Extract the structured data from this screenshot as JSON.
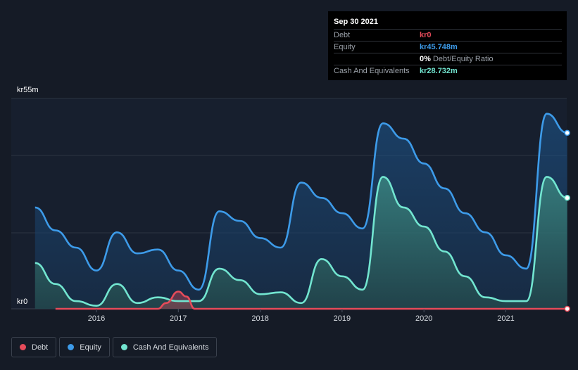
{
  "tooltip": {
    "date": "Sep 30 2021",
    "rows": [
      {
        "label": "Debt",
        "value": "kr0",
        "color": "#e64b5a"
      },
      {
        "label": "Equity",
        "value": "kr45.748m",
        "color": "#3d9be9"
      },
      {
        "label": "",
        "value": "0%",
        "suffix": "Debt/Equity Ratio",
        "color": "#ffffff"
      },
      {
        "label": "Cash And Equivalents",
        "value": "kr28.732m",
        "color": "#72e5d0"
      }
    ]
  },
  "legend": [
    {
      "label": "Debt",
      "color": "#e64b5a"
    },
    {
      "label": "Equity",
      "color": "#3d9be9"
    },
    {
      "label": "Cash And Equivalents",
      "color": "#72e5d0"
    }
  ],
  "chart_data": {
    "type": "area",
    "y_top_label": "kr55m",
    "y_bottom_label": "kr0",
    "ylim": [
      0,
      55
    ],
    "xlim": [
      2015.2,
      2021.75
    ],
    "x_ticks": [
      2016,
      2017,
      2018,
      2019,
      2020,
      2021
    ],
    "x_tick_labels": [
      "2016",
      "2017",
      "2018",
      "2019",
      "2020",
      "2021"
    ],
    "grid": true,
    "series": [
      {
        "name": "Equity",
        "color": "#3d9be9",
        "points": [
          [
            2015.25,
            26.5
          ],
          [
            2015.5,
            20.5
          ],
          [
            2015.75,
            16
          ],
          [
            2016,
            10
          ],
          [
            2016.25,
            20
          ],
          [
            2016.5,
            14.5
          ],
          [
            2016.75,
            15.5
          ],
          [
            2017,
            10
          ],
          [
            2017.25,
            5
          ],
          [
            2017.5,
            25.5
          ],
          [
            2017.75,
            23
          ],
          [
            2018,
            18.5
          ],
          [
            2018.25,
            16
          ],
          [
            2018.5,
            33
          ],
          [
            2018.75,
            29
          ],
          [
            2019,
            25
          ],
          [
            2019.25,
            21
          ],
          [
            2019.5,
            48.5
          ],
          [
            2019.75,
            44.5
          ],
          [
            2020,
            38
          ],
          [
            2020.25,
            31.5
          ],
          [
            2020.5,
            25
          ],
          [
            2020.75,
            20
          ],
          [
            2021,
            14
          ],
          [
            2021.25,
            10.5
          ],
          [
            2021.5,
            51
          ],
          [
            2021.75,
            46
          ]
        ]
      },
      {
        "name": "Cash And Equivalents",
        "color": "#72e5d0",
        "points": [
          [
            2015.25,
            12
          ],
          [
            2015.5,
            6.5
          ],
          [
            2015.75,
            2
          ],
          [
            2016,
            0.8
          ],
          [
            2016.25,
            6.5
          ],
          [
            2016.5,
            1.5
          ],
          [
            2016.75,
            3
          ],
          [
            2017,
            2
          ],
          [
            2017.25,
            2
          ],
          [
            2017.5,
            10.5
          ],
          [
            2017.75,
            7.5
          ],
          [
            2018,
            3.8
          ],
          [
            2018.25,
            4.3
          ],
          [
            2018.5,
            1.5
          ],
          [
            2018.75,
            13
          ],
          [
            2019,
            8.5
          ],
          [
            2019.25,
            5
          ],
          [
            2019.5,
            34.5
          ],
          [
            2019.75,
            26.5
          ],
          [
            2020,
            21.5
          ],
          [
            2020.25,
            15
          ],
          [
            2020.5,
            8.5
          ],
          [
            2020.75,
            3
          ],
          [
            2021,
            2
          ],
          [
            2021.25,
            2
          ],
          [
            2021.5,
            34.5
          ],
          [
            2021.75,
            29
          ]
        ]
      },
      {
        "name": "Debt",
        "color": "#e64b5a",
        "points": [
          [
            2015.5,
            0
          ],
          [
            2016.75,
            0
          ],
          [
            2016.85,
            1.5
          ],
          [
            2017,
            4.5
          ],
          [
            2017.1,
            3.2
          ],
          [
            2017.2,
            0
          ],
          [
            2021.75,
            0
          ]
        ]
      }
    ]
  }
}
